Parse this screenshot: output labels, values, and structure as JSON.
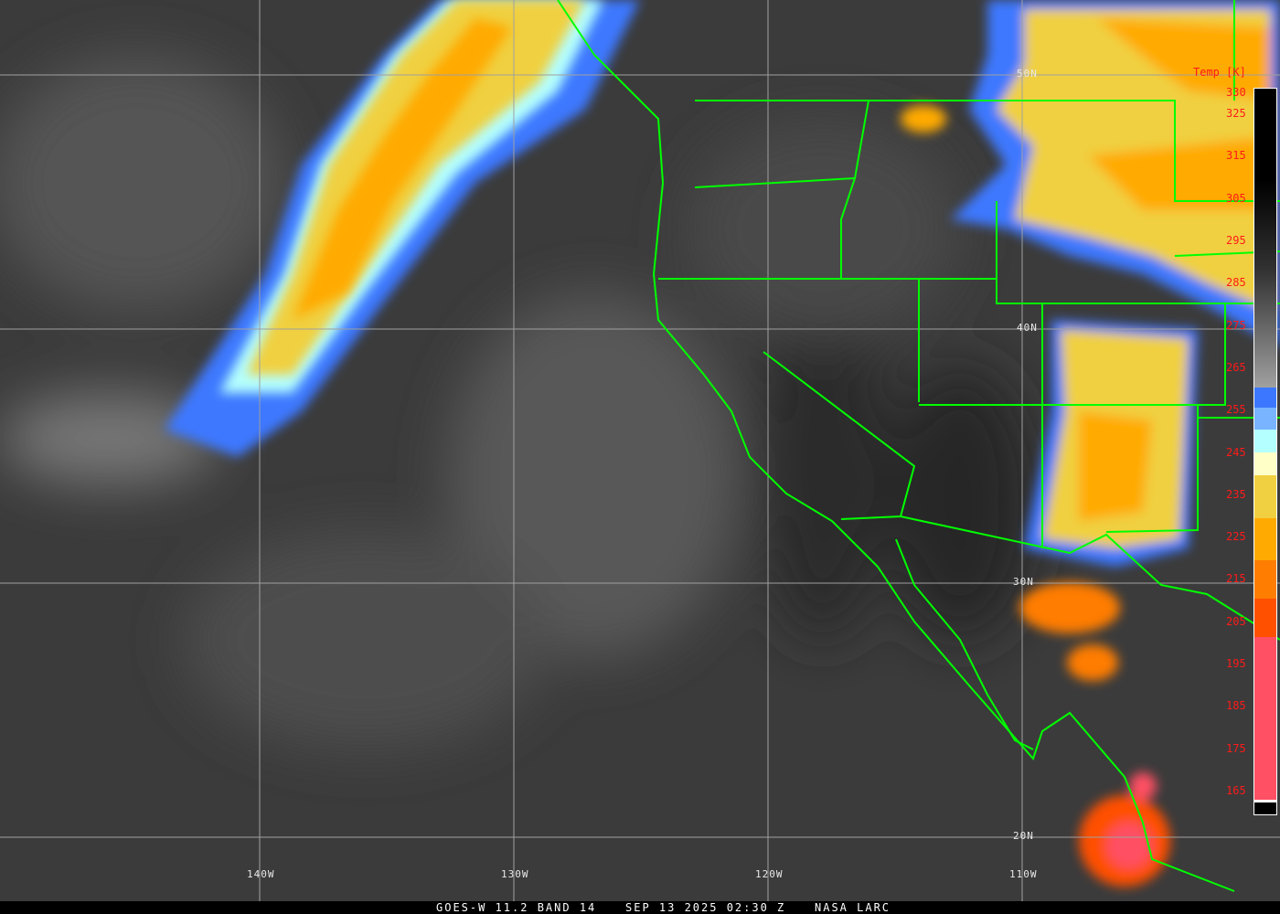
{
  "footer": {
    "satellite": "GOES-W 11.2 BAND 14",
    "datetime": "SEP 13 2025 02:30 Z",
    "credit": "NASA LARC"
  },
  "colorbar": {
    "title": "Temp [K]",
    "ticks": [
      "330",
      "325",
      "315",
      "305",
      "295",
      "285",
      "275",
      "265",
      "255",
      "245",
      "235",
      "225",
      "215",
      "205",
      "195",
      "185",
      "175",
      "165"
    ],
    "colors": {
      "cold_pink": "#ff5064",
      "red_orange": "#ff5000",
      "orange": "#ff7d00",
      "amber": "#ffaa00",
      "yellow": "#f0d040",
      "cream": "#ffffc8",
      "pale_cyan": "#b4ffff",
      "light_blue": "#78b4ff",
      "blue": "#3c78ff"
    }
  },
  "grid": {
    "latitudes": [
      "50N",
      "40N",
      "30N",
      "20N"
    ],
    "longitudes": [
      "140W",
      "130W",
      "120W",
      "110W"
    ]
  },
  "map": {
    "border_color": "#00ff00",
    "grid_color": "#a0a0a0"
  }
}
